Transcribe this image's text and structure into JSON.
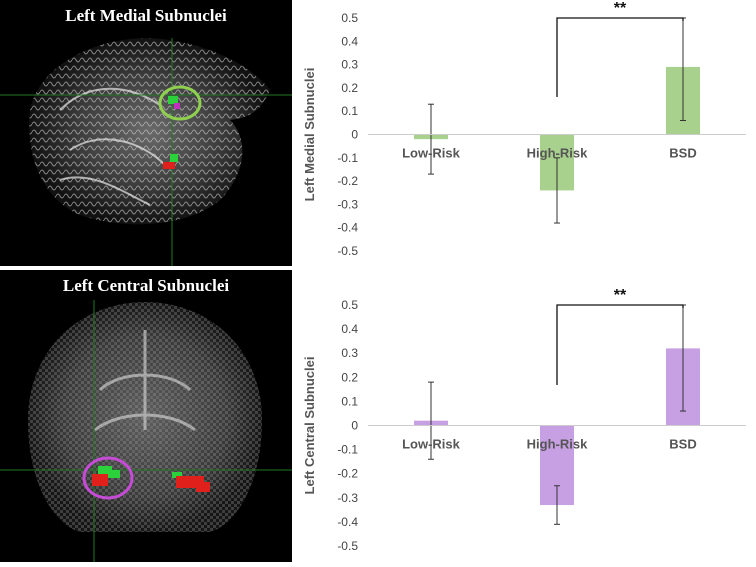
{
  "panels": [
    {
      "title": "Left Medial Subnuclei",
      "circle_color": "#8fd14f"
    },
    {
      "title": "Left Central Subnuclei",
      "circle_color": "#c64bd6"
    }
  ],
  "chart_data": [
    {
      "type": "bar",
      "categories": [
        "Low-Risk",
        "High-Risk",
        "BSD"
      ],
      "values": [
        -0.02,
        -0.24,
        0.29
      ],
      "errors_lower": [
        -0.17,
        -0.38,
        0.06
      ],
      "errors_upper": [
        0.13,
        -0.1,
        0.5
      ],
      "ylabel": "Left Medial Subnuclei",
      "ylim": [
        -0.5,
        0.5
      ],
      "yticks": [
        "0.5",
        "0.4",
        "0.3",
        "0.2",
        "0.1",
        "0",
        "-0.1",
        "-0.2",
        "-0.3",
        "-0.4",
        "-0.5"
      ],
      "bar_color": "#a9d18e",
      "significance": {
        "from": "High-Risk",
        "to": "BSD",
        "label": "**"
      }
    },
    {
      "type": "bar",
      "categories": [
        "Low-Risk",
        "High-Risk",
        "BSD"
      ],
      "values": [
        0.02,
        -0.33,
        0.32
      ],
      "errors_lower": [
        -0.14,
        -0.41,
        0.06
      ],
      "errors_upper": [
        0.18,
        -0.25,
        0.5
      ],
      "ylabel": "Left Central Subnuclei",
      "ylim": [
        -0.5,
        0.5
      ],
      "yticks": [
        "0.5",
        "0.4",
        "0.3",
        "0.2",
        "0.1",
        "0",
        "-0.1",
        "-0.2",
        "-0.3",
        "-0.4",
        "-0.5"
      ],
      "bar_color": "#c79fe3",
      "significance": {
        "from": "High-Risk",
        "to": "BSD",
        "label": "**"
      }
    }
  ]
}
